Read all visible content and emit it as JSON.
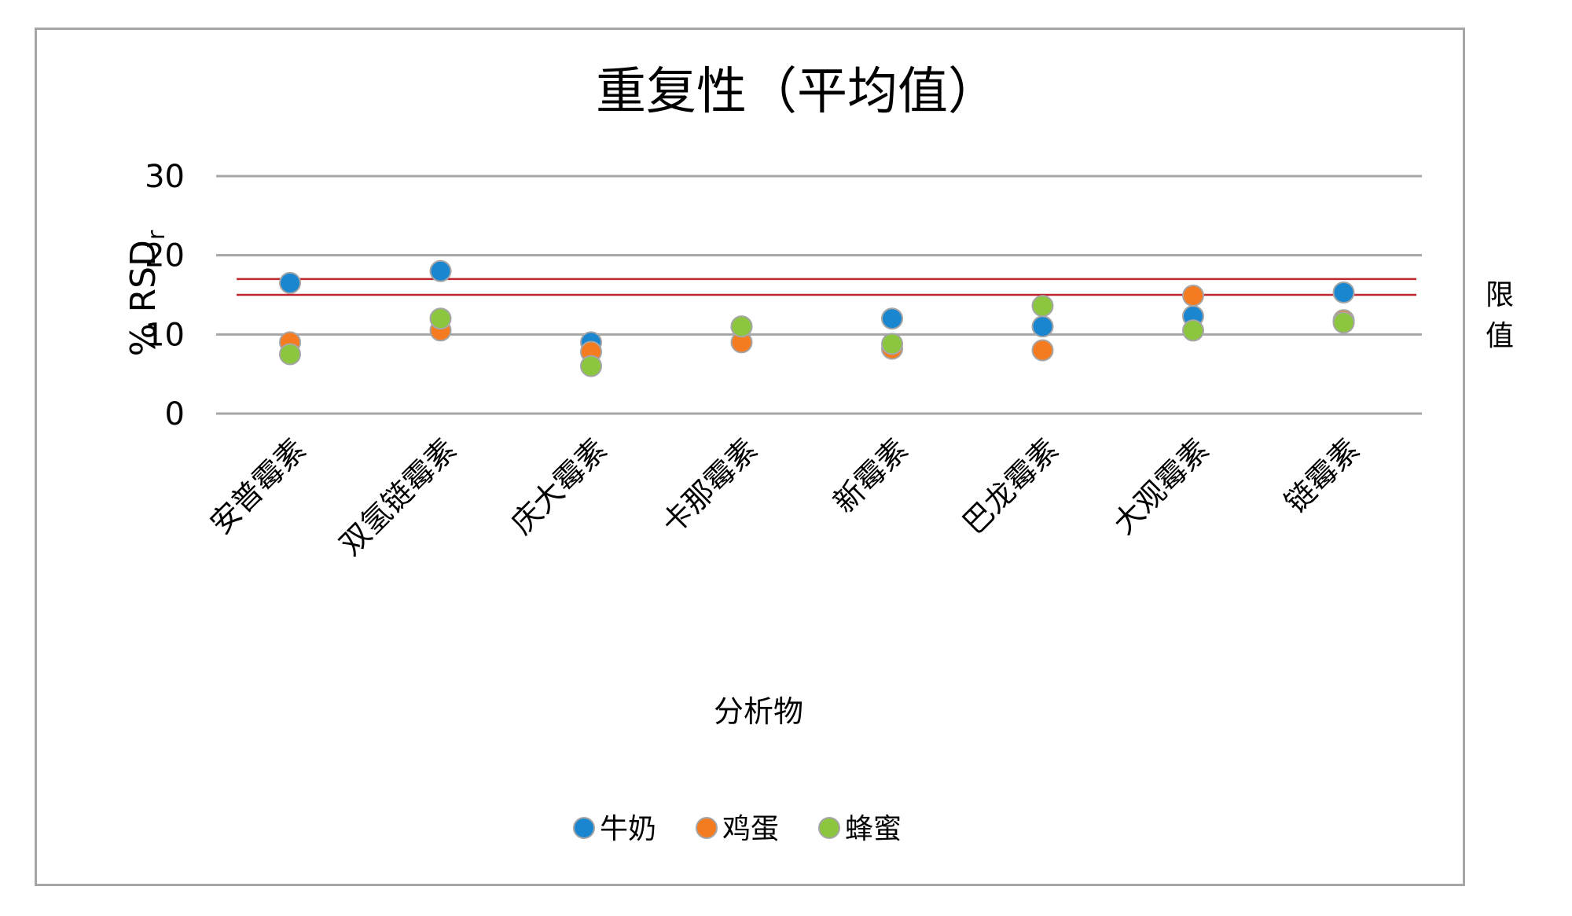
{
  "chart_data": {
    "type": "scatter",
    "title": "重复性（平均值）",
    "xlabel": "分析物",
    "ylabel": "% RSD",
    "ylabel_subscript": "r",
    "ylim": [
      0,
      30
    ],
    "yticks": [
      0,
      10,
      20,
      30
    ],
    "grid": true,
    "legend_position": "bottom",
    "categories": [
      "安普霉素",
      "双氢链霉素",
      "庆大霉素",
      "卡那霉素",
      "新霉素",
      "巴龙霉素",
      "大观霉素",
      "链霉素"
    ],
    "series": [
      {
        "name": "牛奶",
        "color": "#1a86d0",
        "values": [
          16.5,
          18.0,
          9.0,
          11.0,
          12.0,
          11.0,
          12.3,
          15.3
        ]
      },
      {
        "name": "鸡蛋",
        "color": "#f47b20",
        "values": [
          9.0,
          10.5,
          7.8,
          9.0,
          8.2,
          8.0,
          14.9,
          11.8
        ]
      },
      {
        "name": "蜂蜜",
        "color": "#8cc63f",
        "values": [
          7.5,
          12.0,
          6.0,
          11.0,
          8.8,
          13.6,
          10.5,
          11.5
        ]
      }
    ],
    "limit_lines": {
      "label": "限值",
      "values": [
        15,
        17
      ],
      "color": "#c0262d"
    }
  }
}
